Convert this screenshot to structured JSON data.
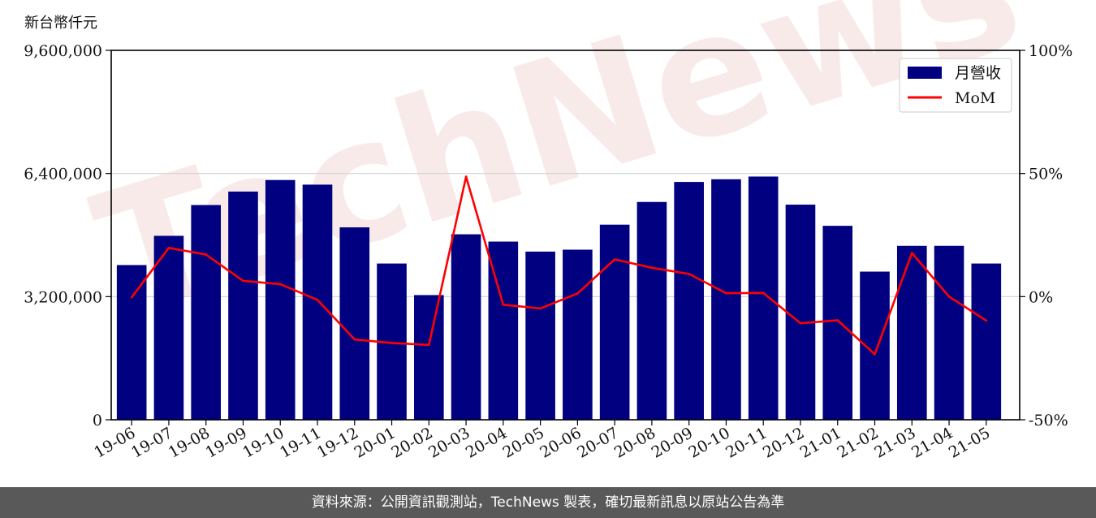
{
  "unit_label": "新台幣仟元",
  "watermark": "TechNews",
  "footer": "資料來源：公開資訊觀測站，TechNews 製表，確切最新訊息以原站公告為準",
  "colors": {
    "bar": "#000080",
    "line": "#ff0000",
    "grid": "#d0d0d0"
  },
  "chart_data": {
    "type": "bar",
    "categories": [
      "19-06",
      "19-07",
      "19-08",
      "19-09",
      "19-10",
      "19-11",
      "19-12",
      "20-01",
      "20-02",
      "20-03",
      "20-04",
      "20-05",
      "20-06",
      "20-07",
      "20-08",
      "20-09",
      "20-10",
      "20-11",
      "20-12",
      "21-01",
      "21-02",
      "21-03",
      "21-04",
      "21-05"
    ],
    "series": [
      {
        "name": "月營收",
        "type": "bar",
        "axis": "left",
        "values": [
          4020000,
          4780000,
          5580000,
          5930000,
          6230000,
          6110000,
          5000000,
          4060000,
          3240000,
          4820000,
          4630000,
          4370000,
          4420000,
          5070000,
          5660000,
          6180000,
          6250000,
          6320000,
          5590000,
          5040000,
          3850000,
          4520000,
          4520000,
          4060000
        ]
      },
      {
        "name": "MoM",
        "type": "line",
        "axis": "right",
        "values": [
          -0.3,
          19.8,
          17.1,
          6.4,
          5.1,
          -1.3,
          -17.4,
          -18.8,
          -19.6,
          48.7,
          -3.3,
          -4.8,
          1.3,
          15.1,
          11.7,
          9.2,
          1.4,
          1.5,
          -10.8,
          -9.6,
          -23.4,
          17.7,
          0.0,
          -9.7
        ]
      }
    ],
    "y_left": {
      "range": [
        0,
        9600000
      ],
      "ticks": [
        0,
        3200000,
        6400000,
        9600000
      ],
      "tick_labels": [
        "0",
        "3,200,000",
        "6,400,000",
        "9,600,000"
      ]
    },
    "y_right": {
      "range": [
        -50,
        100
      ],
      "ticks": [
        -50,
        0,
        50,
        100
      ],
      "tick_labels": [
        "-50%",
        "0%",
        "50%",
        "100%"
      ]
    },
    "grid": "horizontal",
    "legend": "top-right"
  }
}
